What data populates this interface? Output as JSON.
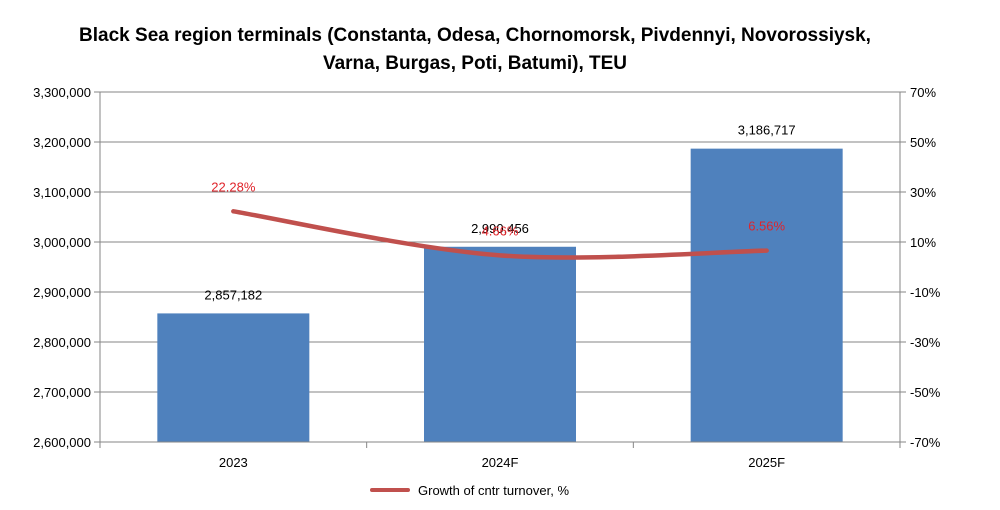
{
  "chart_data": {
    "type": "bar",
    "title_lines": [
      "Black Sea region terminals (Constanta, Odesa, Chornomorsk, Pivdennyi, Novorossiysk,",
      "Varna, Burgas, Poti, Batumi), TEU"
    ],
    "categories": [
      "2023",
      "2024F",
      "2025F"
    ],
    "series": [
      {
        "type": "bar",
        "axis": "left",
        "values": [
          2857182,
          2990456,
          3186717
        ],
        "value_labels": [
          "2,857,182",
          "2,990,456",
          "3,186,717"
        ],
        "color": "#4f81bd"
      },
      {
        "type": "line",
        "axis": "right",
        "name": "Growth of cntr turnover, %",
        "values": [
          22.28,
          4.66,
          6.56
        ],
        "value_labels": [
          "22.28%",
          "4.66%",
          "6.56%"
        ],
        "color": "#c0504d",
        "label_color": "#e0242b"
      }
    ],
    "y_left": {
      "min": 2600000,
      "max": 3300000,
      "ticks": [
        2600000,
        2700000,
        2800000,
        2900000,
        3000000,
        3100000,
        3200000,
        3300000
      ],
      "tick_labels": [
        "2,600,000",
        "2,700,000",
        "2,800,000",
        "2,900,000",
        "3,000,000",
        "3,100,000",
        "3,200,000",
        "3,300,000"
      ]
    },
    "y_right": {
      "min": -70,
      "max": 70,
      "ticks": [
        -70,
        -50,
        -30,
        -10,
        10,
        30,
        50,
        70
      ],
      "tick_labels": [
        "-70%",
        "-50%",
        "-30%",
        "-10%",
        "10%",
        "30%",
        "50%",
        "70%"
      ]
    },
    "grid": true,
    "legend": "bottom-center"
  }
}
